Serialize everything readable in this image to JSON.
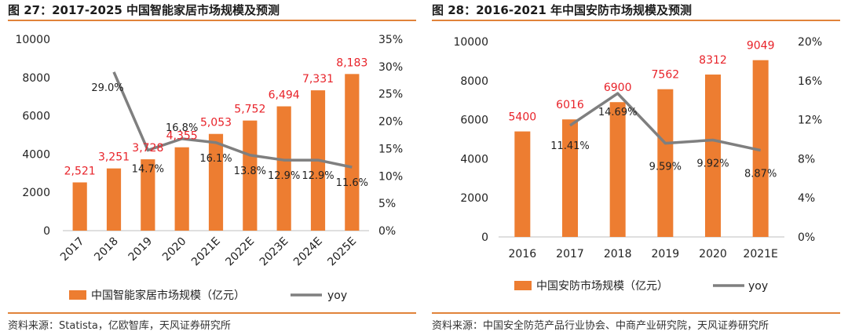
{
  "charts": [
    {
      "figure_title": "图 27：2017-2025 中国智能家居市场规模及预测",
      "source": "资料来源：Statista，亿欧智库，天风证券研究所",
      "legend": {
        "bar": "中国智能家居市场规模（亿元）",
        "line": "yoy"
      }
    },
    {
      "figure_title": "图 28：2016-2021 年中国安防市场规模及预测",
      "source": "资料来源：中国安全防范产品行业协会、中商产业研究院，天风证券研究所",
      "legend": {
        "bar": "中国安防市场规模（亿元）",
        "line": "yoy"
      }
    }
  ],
  "colors": {
    "bar": "#ed7d31",
    "bar_label": "#e8232a",
    "line": "#7f7f7f",
    "rule": "#e1833a",
    "text": "#222222"
  },
  "chart_data": [
    {
      "type": "bar",
      "title": "2017-2025 中国智能家居市场规模及预测",
      "categories": [
        "2017",
        "2018",
        "2019",
        "2020",
        "2021E",
        "2022E",
        "2023E",
        "2024E",
        "2025E"
      ],
      "series": [
        {
          "name": "中国智能家居市场规模（亿元）",
          "type": "bar",
          "axis": "left",
          "values": [
            2521,
            3251,
            3728,
            4355,
            5053,
            5752,
            6494,
            7331,
            8183
          ],
          "labels": [
            "2,521",
            "3,251",
            "3,728",
            "4,355",
            "5,053",
            "5,752",
            "6,494",
            "7,331",
            "8,183"
          ]
        },
        {
          "name": "yoy",
          "type": "line",
          "axis": "right",
          "values": [
            null,
            29.0,
            14.7,
            16.8,
            16.1,
            13.8,
            12.9,
            12.9,
            11.6
          ],
          "labels": [
            "",
            "29.0%",
            "14.7%",
            "16.8%",
            "16.1%",
            "13.8%",
            "12.9%",
            "12.9%",
            "11.6%"
          ]
        }
      ],
      "y_left": {
        "min": 0,
        "max": 10000,
        "ticks": [
          0,
          2000,
          4000,
          6000,
          8000,
          10000
        ],
        "tick_labels": [
          "0",
          "2000",
          "4000",
          "6000",
          "8000",
          "10000"
        ]
      },
      "y_right": {
        "min": 0,
        "max": 35,
        "ticks": [
          0,
          5,
          10,
          15,
          20,
          25,
          30,
          35
        ],
        "tick_labels": [
          "0%",
          "5%",
          "10%",
          "15%",
          "20%",
          "25%",
          "30%",
          "35%"
        ]
      },
      "grid": false,
      "legend_position": "bottom"
    },
    {
      "type": "bar",
      "title": "2016-2021 年中国安防市场规模及预测",
      "categories": [
        "2016",
        "2017",
        "2018",
        "2019",
        "2020",
        "2021E"
      ],
      "series": [
        {
          "name": "中国安防市场规模（亿元）",
          "type": "bar",
          "axis": "left",
          "values": [
            5400,
            6016,
            6900,
            7562,
            8312,
            9049
          ],
          "labels": [
            "5400",
            "6016",
            "6900",
            "7562",
            "8312",
            "9049"
          ]
        },
        {
          "name": "yoy",
          "type": "line",
          "axis": "right",
          "values": [
            null,
            11.41,
            14.69,
            9.59,
            9.92,
            8.87
          ],
          "labels": [
            "",
            "11.41%",
            "14.69%",
            "9.59%",
            "9.92%",
            "8.87%"
          ]
        }
      ],
      "y_left": {
        "min": 0,
        "max": 10000,
        "ticks": [
          0,
          2000,
          4000,
          6000,
          8000,
          10000
        ],
        "tick_labels": [
          "0",
          "2000",
          "4000",
          "6000",
          "8000",
          "10000"
        ]
      },
      "y_right": {
        "min": 0,
        "max": 20,
        "ticks": [
          0,
          4,
          8,
          12,
          16,
          20
        ],
        "tick_labels": [
          "0%",
          "4%",
          "8%",
          "12%",
          "16%",
          "20%"
        ]
      },
      "grid": false,
      "legend_position": "bottom"
    }
  ]
}
